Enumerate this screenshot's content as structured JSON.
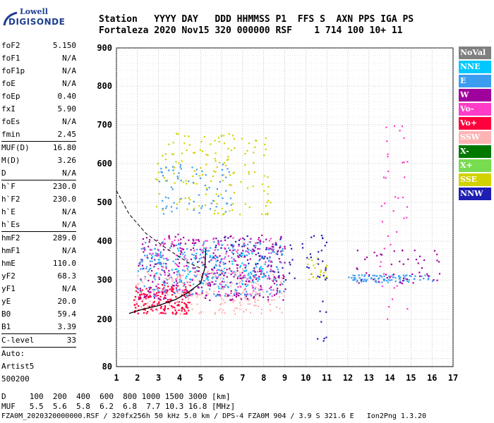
{
  "logo": {
    "line1": "Lowell",
    "line2": "DIGISONDE"
  },
  "header": {
    "labels": "Station   YYYY DAY   DDD HHMMSS P1  FFS S  AXN PPS IGA PS",
    "values": "Fortaleza 2020 Nov15 320 000000 RSF    1 714 100 10+ 11"
  },
  "params": [
    {
      "label": "foF2",
      "value": "5.150"
    },
    {
      "label": "foF1",
      "value": "N/A"
    },
    {
      "label": "foF1p",
      "value": "N/A"
    },
    {
      "label": "foE",
      "value": "N/A"
    },
    {
      "label": "foEp",
      "value": "0.40"
    },
    {
      "label": "fxI",
      "value": "5.90"
    },
    {
      "label": "foEs",
      "value": "N/A"
    },
    {
      "label": "fmin",
      "value": "2.45"
    },
    {
      "sep": true
    },
    {
      "label": "MUF(D)",
      "value": "16.80"
    },
    {
      "label": "M(D)",
      "value": "3.26"
    },
    {
      "label": "D",
      "value": "N/A"
    },
    {
      "sep": true
    },
    {
      "label": "h`F",
      "value": "230.0"
    },
    {
      "label": "h`F2",
      "value": "230.0"
    },
    {
      "label": "h`E",
      "value": "N/A"
    },
    {
      "label": "h`Es",
      "value": "N/A"
    },
    {
      "sep": true
    },
    {
      "label": "hmF2",
      "value": "289.0"
    },
    {
      "label": "hmF1",
      "value": "N/A"
    },
    {
      "label": "hmE",
      "value": "110.0"
    },
    {
      "label": "yF2",
      "value": "68.3"
    },
    {
      "label": "yF1",
      "value": "N/A"
    },
    {
      "label": "yE",
      "value": "20.0"
    },
    {
      "label": "B0",
      "value": "59.4"
    },
    {
      "label": "B1",
      "value": "3.39"
    },
    {
      "sep": true
    },
    {
      "label": "C-level",
      "value": "33"
    },
    {
      "sep": true
    },
    {
      "label": "Auto:",
      "value": ""
    },
    {
      "label": "Artist5",
      "value": ""
    },
    {
      "label": "500200",
      "value": ""
    }
  ],
  "legend": [
    {
      "label": "NoVal",
      "color": "#808080"
    },
    {
      "label": "NNE",
      "color": "#00c8ff"
    },
    {
      "label": "E",
      "color": "#3c9cf0"
    },
    {
      "label": "W",
      "color": "#a0009c"
    },
    {
      "label": "Vo-",
      "color": "#ff3cc8"
    },
    {
      "label": "Vo+",
      "color": "#ff003c"
    },
    {
      "label": "SSW",
      "color": "#ffb4b4"
    },
    {
      "label": "X-",
      "color": "#007800"
    },
    {
      "label": "X+",
      "color": "#78dc50"
    },
    {
      "label": "SSE",
      "color": "#d2d200"
    },
    {
      "label": "NNW",
      "color": "#1e1eb4"
    }
  ],
  "chart_data": {
    "type": "scatter",
    "xlabel": "",
    "ylabel": "",
    "xlim": [
      1,
      17
    ],
    "ylim": [
      80,
      900
    ],
    "xticks": [
      "1",
      "2",
      "3",
      "4",
      "5",
      "6",
      "7",
      "8",
      "9",
      "10",
      "11",
      "12",
      "13",
      "14",
      "15",
      "16",
      "17"
    ],
    "yticks": [
      "900",
      "800",
      "700",
      "600",
      "500",
      "400",
      "300",
      "200",
      "80"
    ],
    "ytick_values": [
      900,
      800,
      700,
      600,
      500,
      400,
      300,
      200,
      80
    ],
    "trace_curve": [
      [
        1.6,
        215
      ],
      [
        2.2,
        225
      ],
      [
        3,
        235
      ],
      [
        3.8,
        250
      ],
      [
        4.4,
        268
      ],
      [
        5.0,
        292
      ],
      [
        5.2,
        330
      ],
      [
        5.25,
        380
      ]
    ],
    "dashed_curve": [
      [
        1.0,
        530
      ],
      [
        1.6,
        470
      ],
      [
        2.4,
        420
      ],
      [
        3.4,
        380
      ],
      [
        4.4,
        345
      ],
      [
        5.0,
        330
      ]
    ],
    "clusters": [
      {
        "series": "SSW",
        "xr": [
          1.8,
          9.0
        ],
        "yr": [
          215,
          330
        ],
        "n": 260
      },
      {
        "series": "Vo+",
        "xr": [
          1.8,
          4.5
        ],
        "yr": [
          215,
          290
        ],
        "n": 180
      },
      {
        "series": "W",
        "xr": [
          2.0,
          9.0
        ],
        "yr": [
          250,
          420
        ],
        "n": 320
      },
      {
        "series": "E",
        "xr": [
          2.0,
          9.0
        ],
        "yr": [
          260,
          400
        ],
        "n": 300
      },
      {
        "series": "Vo-",
        "xr": [
          2.5,
          8.5
        ],
        "yr": [
          260,
          410
        ],
        "n": 140
      },
      {
        "series": "NNE",
        "xr": [
          2.5,
          8.0
        ],
        "yr": [
          280,
          380
        ],
        "n": 80
      },
      {
        "series": "NNW",
        "xr": [
          5.5,
          11.0
        ],
        "yr": [
          300,
          420
        ],
        "n": 70
      },
      {
        "series": "SSE",
        "xr": [
          2.8,
          8.3
        ],
        "yr": [
          470,
          680
        ],
        "n": 150
      },
      {
        "series": "E",
        "xr": [
          3.0,
          6.5
        ],
        "yr": [
          470,
          600
        ],
        "n": 70
      },
      {
        "series": "E",
        "xr": [
          12.0,
          16.0
        ],
        "yr": [
          295,
          315
        ],
        "n": 90
      },
      {
        "series": "W",
        "xr": [
          12.0,
          16.5
        ],
        "yr": [
          290,
          380
        ],
        "n": 50
      },
      {
        "series": "Vo-",
        "xr": [
          13.5,
          14.8
        ],
        "yr": [
          200,
          700
        ],
        "n": 40
      },
      {
        "series": "SSE",
        "xr": [
          10.0,
          11.0
        ],
        "yr": [
          300,
          360
        ],
        "n": 20
      },
      {
        "series": "NNW",
        "xr": [
          10.5,
          11.0
        ],
        "yr": [
          140,
          400
        ],
        "n": 15
      }
    ]
  },
  "footer": {
    "line1": "D     100  200  400  600  800 1000 1500 3000 [km]",
    "line2": "MUF   5.5  5.6  5.8  6.2  6.8  7.7 10.3 16.8 [MHz]",
    "line3": "FZA0M_2020320000000.RSF / 320fx256h 50 kHz 5.0 km / DPS-4 FZA0M 904 / 3.9 S 321.6 E   Ion2Png 1.3.20"
  }
}
